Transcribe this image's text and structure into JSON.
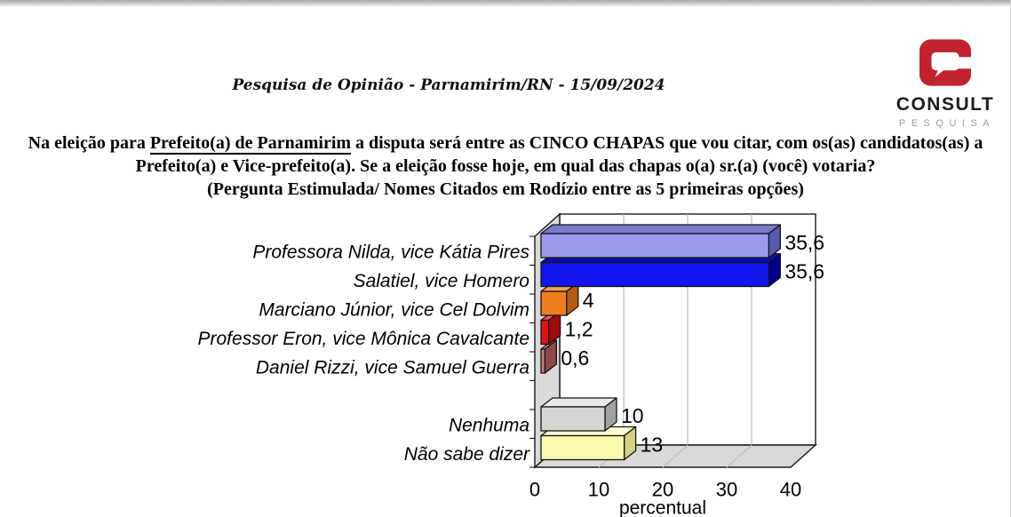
{
  "header": {
    "subtitle": "Pesquisa de Opinião  -  Parnamirim/RN  -  15/09/2024"
  },
  "logo": {
    "name": "CONSULT",
    "tagline": "PESQUISA",
    "icon": "speech-bubble-c",
    "icon_color": "#c1232e",
    "name_color": "#1d1d1b",
    "tagline_color": "#9c9c9c"
  },
  "question": {
    "line1_pre": "Na eleição para ",
    "line1_underline": "Prefeito(a) de Parnamirim",
    "line1_post": " a disputa será entre as CINCO CHAPAS que vou citar, com os(as) candidatos(as) a",
    "line2": "Prefeito(a) e Vice-prefeito(a). Se a eleição fosse hoje, em qual das chapas o(a) sr.(a) (você) votaria?",
    "line3": "(Pergunta Estimulada/ Nomes Citados em Rodízio entre as 5 primeiras opções)"
  },
  "chart_data": {
    "type": "bar",
    "orientation": "horizontal",
    "style": "3d",
    "categories": [
      "Professora Nilda, vice Kátia Pires",
      "Salatiel, vice Homero",
      "Marciano Júnior, vice Cel Dolvim",
      "Professor Eron, vice Mônica Cavalcante",
      "Daniel Rizzi, vice Samuel Guerra",
      "Nenhuma",
      "Não sabe dizer"
    ],
    "values": [
      35.6,
      35.6,
      4,
      1.2,
      0.6,
      10,
      13
    ],
    "value_labels": [
      "35,6",
      "35,6",
      "4",
      "1,2",
      "0,6",
      "10",
      "13"
    ],
    "blank_row_after_index": 4,
    "xlabel": "percentual",
    "xticks": [
      0,
      10,
      20,
      30,
      40
    ],
    "xtick_labels": [
      "0",
      "10",
      "20",
      "30",
      "40"
    ],
    "xlim": [
      0,
      40
    ],
    "grid": true,
    "wall_color": "#d9d9d9",
    "gridline_color": "#bfbfbf",
    "outline_color": "#1a1a1a",
    "colors": [
      {
        "front": "#9b9bee",
        "top": "#7b7bd2",
        "side": "#5858ae"
      },
      {
        "front": "#1414ec",
        "top": "#0d0dae",
        "side": "#00008f"
      },
      {
        "front": "#ee7d1d",
        "top": "#f8a350",
        "side": "#b65a10"
      },
      {
        "front": "#e01414",
        "top": "#f05c5c",
        "side": "#a00c0c"
      },
      {
        "front": "#c47c7c",
        "top": "#d8a4a4",
        "side": "#8e4848"
      },
      {
        "front": "#d5d5d5",
        "top": "#eaeaea",
        "side": "#a2a2a2"
      },
      {
        "front": "#fafaae",
        "top": "#fdfdd4",
        "side": "#d2d282"
      }
    ]
  }
}
